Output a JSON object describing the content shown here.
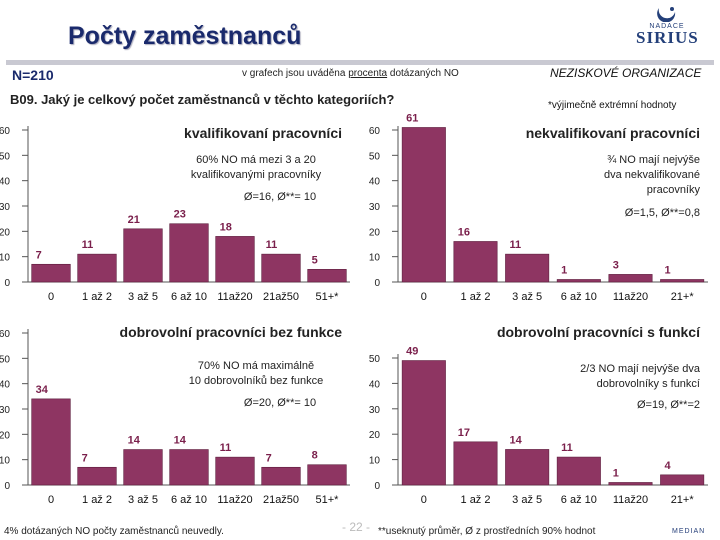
{
  "header": {
    "title": "Počty zaměstnanců",
    "logo_line1": "NADACE",
    "logo_line2": "SIRIUS",
    "sample": "N=210",
    "note_prefix": "v grafech jsou uváděna",
    "note_underlined": "procenta",
    "note_suffix": "dotázaných NO",
    "org": "NEZISKOVÉ ORGANIZACE",
    "question": "B09. Jaký je celkový počet  zaměstnanců v těchto kategoriích?",
    "exclusion_note": "*výjimečně extrémní hodnoty"
  },
  "footer": {
    "left_note": "4% dotázaných NO počty zaměstnanců neuvedly.",
    "page": "- 22 -",
    "right_note": "**useknutý průměr, Ø z prostředních 90% hodnot",
    "median_logo": "MEDIAN"
  },
  "colors": {
    "bar": "#8e3562",
    "bar_stroke": "#5c1d3d",
    "label": "#7a1f4b",
    "axis": "#555555",
    "grid": "#dddddd",
    "title_blue": "#1a2a6c"
  },
  "chart_data": [
    {
      "type": "bar",
      "title": "kvalifikovaní pracovníci",
      "categories": [
        "0",
        "1 až 2",
        "3 až 5",
        "6 až 10",
        "11až20",
        "21až50",
        "51+*"
      ],
      "values": [
        7,
        11,
        21,
        23,
        18,
        11,
        5
      ],
      "yticks": [
        "0",
        "10",
        "20",
        "30",
        "40",
        "50",
        "60"
      ],
      "ylim": [
        0,
        60
      ],
      "annotation": [
        "60% NO má mezi 3 a 20",
        "kvalifikovanými pracovníky"
      ],
      "stats": "Ø=16, Ø**= 10"
    },
    {
      "type": "bar",
      "title": "nekvalifikovaní pracovníci",
      "categories": [
        "0",
        "1 až 2",
        "3 až 5",
        "6 až 10",
        "11až20",
        "21+*"
      ],
      "values": [
        61,
        16,
        11,
        1,
        3,
        1
      ],
      "yticks": [
        "0",
        "10",
        "20",
        "30",
        "40",
        "50",
        "60"
      ],
      "ylim": [
        0,
        60
      ],
      "annotation": [
        "¾ NO mají nejvýše",
        "dva nekvalifikované",
        "pracovníky"
      ],
      "stats": "Ø=1,5, Ø**=0,8"
    },
    {
      "type": "bar",
      "title": "dobrovolní pracovníci bez funkce",
      "categories": [
        "0",
        "1 až 2",
        "3 až 5",
        "6 až 10",
        "11až20",
        "21až50",
        "51+*"
      ],
      "values": [
        34,
        7,
        14,
        14,
        11,
        7,
        8
      ],
      "yticks": [
        "0",
        "10",
        "20",
        "30",
        "40",
        "50",
        "60"
      ],
      "ylim": [
        0,
        60
      ],
      "annotation": [
        "70% NO má maximálně",
        "10 dobrovolníků bez funkce"
      ],
      "stats": "Ø=20, Ø**= 10"
    },
    {
      "type": "bar",
      "title": "dobrovolní pracovníci s funkcí",
      "categories": [
        "0",
        "1 až 2",
        "3 až 5",
        "6 až 10",
        "11až20",
        "21+*"
      ],
      "values": [
        49,
        17,
        14,
        11,
        1,
        4
      ],
      "yticks": [
        "0",
        "10",
        "20",
        "30",
        "40",
        "50"
      ],
      "ylim": [
        0,
        50
      ],
      "annotation": [
        "2/3 NO mají nejvýše dva",
        "dobrovolníky s funkcí"
      ],
      "stats": "Ø=19, Ø**=2"
    }
  ]
}
